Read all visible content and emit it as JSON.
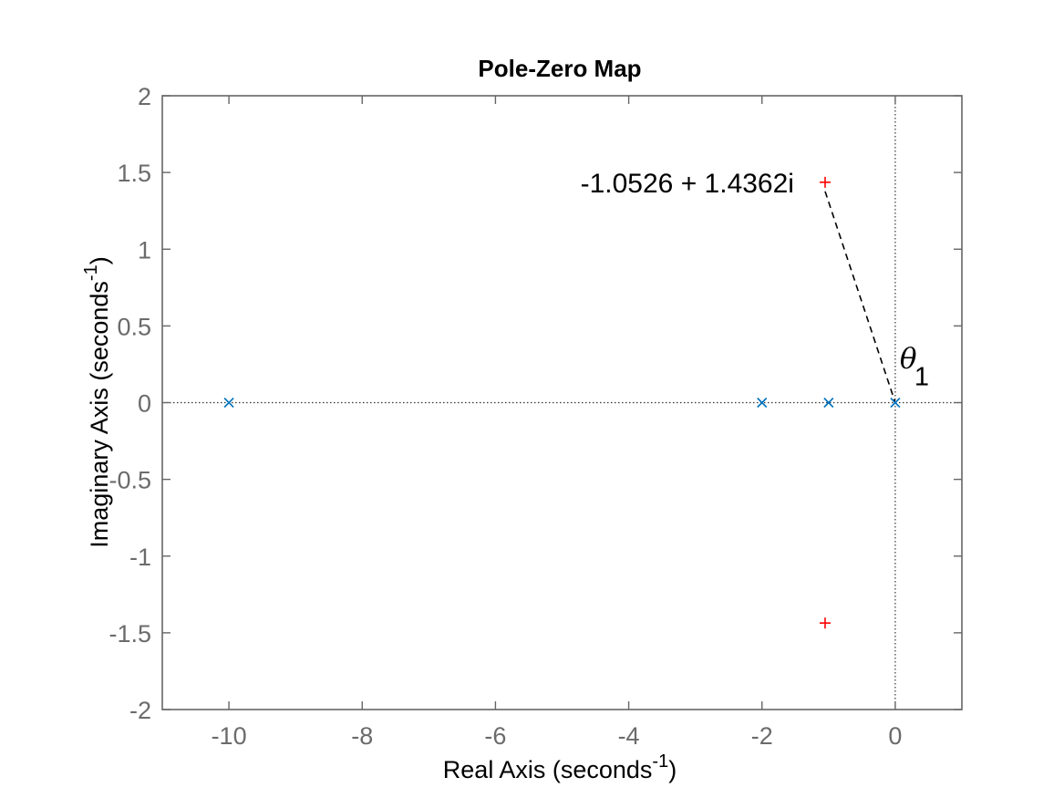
{
  "chart_data": {
    "type": "scatter",
    "title": "Pole-Zero Map",
    "xlabel": {
      "main": "Real Axis (seconds",
      "sup": "-1",
      "close": ")"
    },
    "ylabel": {
      "main": "Imaginary Axis (seconds",
      "sup": "-1",
      "close": ")"
    },
    "xlim": [
      -11,
      1
    ],
    "ylim": [
      -2,
      2
    ],
    "xticks": [
      -10,
      -8,
      -6,
      -4,
      -2,
      0
    ],
    "xtick_labels": [
      "-10",
      "-8",
      "-6",
      "-4",
      "-2",
      "0"
    ],
    "yticks": [
      -2,
      -1.5,
      -1,
      -0.5,
      0,
      0.5,
      1,
      1.5,
      2
    ],
    "ytick_labels": [
      "-2",
      "-1.5",
      "-1",
      "-0.5",
      "0",
      "0.5",
      "1",
      "1.5",
      "2"
    ],
    "grid": false,
    "reference_lines": {
      "x": 0,
      "y": 0,
      "style": "dotted"
    },
    "series": [
      {
        "marker": "x",
        "color": "#0072BD",
        "points": [
          [
            -10,
            0
          ],
          [
            -2,
            0
          ],
          [
            -1,
            0
          ],
          [
            0,
            0
          ]
        ]
      },
      {
        "marker": "+",
        "color": "#FF0000",
        "points": [
          [
            -1.0526,
            1.4362
          ],
          [
            -1.0526,
            -1.4362
          ]
        ]
      }
    ],
    "annotations": [
      {
        "text": "-1.0526 + 1.4362i",
        "x": -1.0526,
        "y": 1.4362
      },
      {
        "text": "θ",
        "sub": "1",
        "x": 0,
        "y": 0
      }
    ],
    "dashed_segment": {
      "from": [
        -1.0526,
        1.4362
      ],
      "to": [
        0,
        0
      ]
    }
  }
}
